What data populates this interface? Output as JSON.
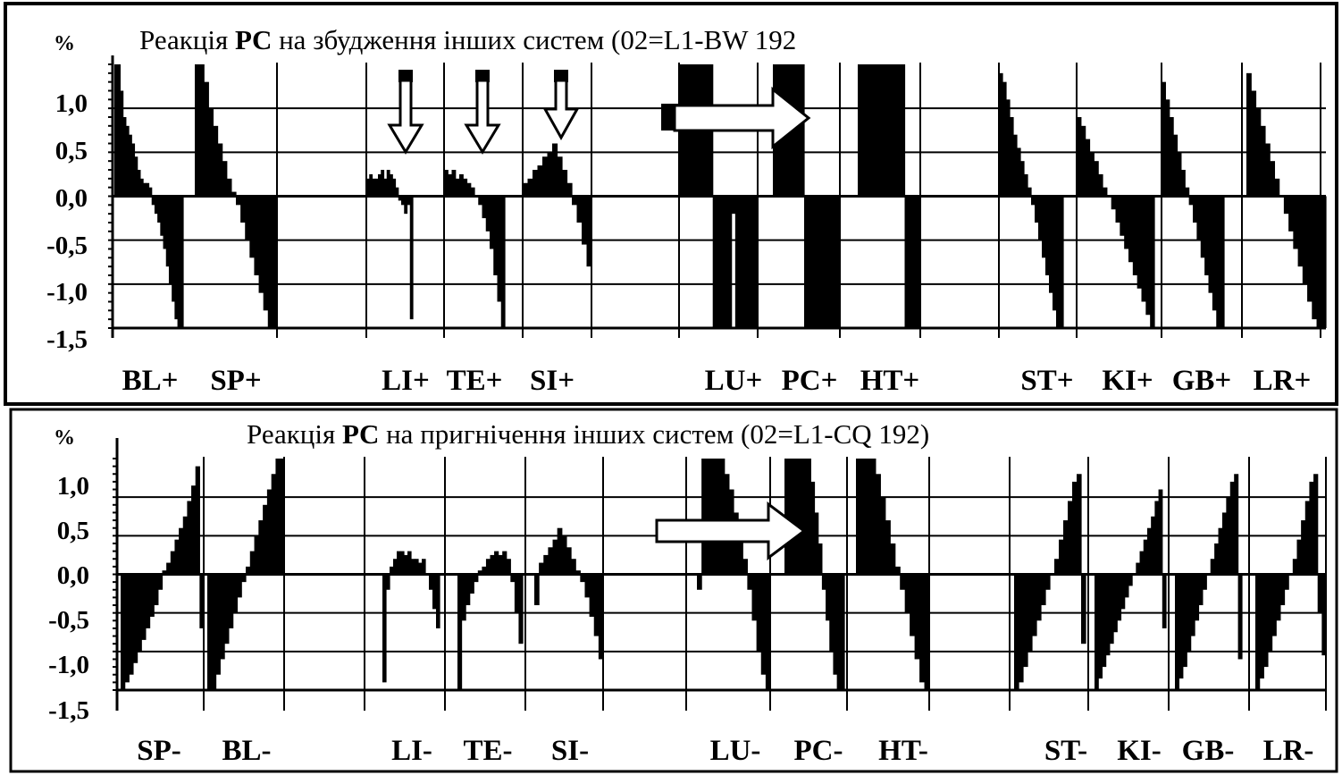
{
  "chart_data": [
    {
      "type": "bar",
      "title": {
        "prefix": "Реакція ",
        "bold": "PC",
        "suffix": " на збудження інших систем  (02=L1-BW 192"
      },
      "ylabel": "%",
      "ylim": [
        -1.5,
        1.5
      ],
      "yticks": [
        "1,0",
        "0,5",
        "0,0",
        "-0,5",
        "-1,0",
        "-1,5"
      ],
      "ytick_values": [
        1.0,
        0.5,
        0.0,
        -0.5,
        -1.0,
        -1.5
      ],
      "categories": [
        "BL+",
        "SP+",
        "LI+",
        "TE+",
        "SI+",
        "LU+",
        "PC+",
        "HT+",
        "ST+",
        "KI+",
        "GB+",
        "LR+"
      ],
      "series": [
        {
          "values": {
            "BL+": [
              1.5,
              1.5,
              1.2,
              0.9,
              0.8,
              0.7,
              0.6,
              0.45,
              0.3,
              0.2,
              0.15,
              0.15,
              0.1,
              -0.1,
              -0.2,
              -0.3,
              -0.45,
              -0.6,
              -0.8,
              -1.0,
              -1.2,
              -1.4,
              -1.5,
              -1.5
            ],
            "SP+": [
              1.5,
              1.5,
              1.3,
              1.0,
              0.8,
              0.6,
              0.4,
              0.2,
              0.05,
              -0.1,
              -0.3,
              -0.5,
              -0.7,
              -0.9,
              -1.1,
              -1.3,
              -1.5,
              -1.5
            ],
            "LI+": [
              0.2,
              0.25,
              0.2,
              0.2,
              0.25,
              0.3,
              0.2,
              0.3,
              0.25,
              0.2,
              0.1,
              -0.05,
              -0.1,
              -0.2,
              -0.1,
              -1.4
            ],
            "TE+": [
              0.3,
              0.25,
              0.3,
              0.2,
              0.25,
              0.2,
              0.15,
              0.1,
              0.0,
              -0.1,
              -0.25,
              -0.4,
              -0.6,
              -0.9,
              -1.2,
              -1.5
            ],
            "SI+": [
              0.15,
              0.2,
              0.3,
              0.35,
              0.45,
              0.5,
              0.6,
              0.45,
              0.3,
              0.15,
              -0.1,
              -0.3,
              -0.55,
              -0.8
            ],
            "LU+": [
              1.5,
              1.5,
              1.5,
              1.5,
              1.5,
              1.5,
              1.5,
              1.5,
              1.5,
              -1.5,
              -1.5,
              -1.5,
              -1.5,
              -1.5,
              -0.2,
              -1.5,
              -1.5,
              -1.5,
              -1.5,
              -1.5,
              -1.5
            ],
            "PC+": [
              1.5,
              1.5,
              1.5,
              1.5,
              1.5,
              1.5,
              1.5,
              -1.5,
              -1.5,
              -1.5,
              -1.5,
              -1.5,
              -1.5,
              -1.5,
              -1.5
            ],
            "HT+": [
              1.5,
              1.5,
              1.5,
              1.5,
              1.5,
              1.5,
              1.5,
              1.5,
              1.5,
              -1.5,
              -1.5,
              -1.5
            ],
            "ST+": [
              1.4,
              1.3,
              1.1,
              0.9,
              0.7,
              0.55,
              0.4,
              0.25,
              0.1,
              -0.1,
              -0.3,
              -0.5,
              -0.7,
              -0.9,
              -1.1,
              -1.3,
              -1.5,
              -1.5
            ],
            "KI+": [
              0.9,
              0.8,
              0.65,
              0.5,
              0.4,
              0.25,
              0.1,
              0.0,
              -0.15,
              -0.3,
              -0.45,
              -0.6,
              -0.75,
              -0.9,
              -1.05,
              -1.2,
              -1.35,
              -1.5
            ],
            "GB+": [
              1.3,
              1.1,
              0.9,
              0.7,
              0.5,
              0.3,
              0.1,
              -0.1,
              -0.3,
              -0.5,
              -0.7,
              -0.9,
              -1.1,
              -1.3,
              -1.5,
              -1.5
            ],
            "LR+": [
              1.4,
              1.2,
              1.0,
              0.8,
              0.6,
              0.4,
              0.2,
              0.0,
              -0.2,
              -0.4,
              -0.6,
              -0.8,
              -1.0,
              -1.2,
              -1.4,
              -1.5,
              -1.5
            ]
          }
        }
      ],
      "arrows": [
        "down",
        "down",
        "down",
        "right"
      ]
    },
    {
      "type": "bar",
      "title": {
        "prefix": "Реакція ",
        "bold": "PC",
        "suffix": " на пригнічення інших систем (02=L1-CQ 192)"
      },
      "ylabel": "%",
      "ylim": [
        -1.5,
        1.5
      ],
      "yticks": [
        "1,0",
        "0,5",
        "0,0",
        "-0,5",
        "-1,0",
        "-1,5"
      ],
      "ytick_values": [
        1.0,
        0.5,
        0.0,
        -0.5,
        -1.0,
        -1.5
      ],
      "categories": [
        "SP-",
        "BL-",
        "LI-",
        "TE-",
        "SI-",
        "LU-",
        "PC-",
        "HT-",
        "ST-",
        "KI-",
        "GB-",
        "LR-"
      ],
      "series": [
        {
          "values": {
            "SP-": [
              -1.5,
              -1.4,
              -1.3,
              -1.15,
              -1.0,
              -0.85,
              -0.7,
              -0.55,
              -0.4,
              -0.2,
              0.05,
              0.15,
              0.3,
              0.45,
              0.6,
              0.75,
              0.95,
              1.15,
              1.4,
              -0.7
            ],
            "BL-": [
              -1.5,
              -1.5,
              -1.3,
              -1.1,
              -0.9,
              -0.7,
              -0.5,
              -0.3,
              -0.1,
              0.1,
              0.3,
              0.5,
              0.7,
              0.9,
              1.1,
              1.3,
              1.5,
              1.5
            ],
            "LI-": [
              -1.4,
              -0.2,
              0.1,
              0.2,
              0.3,
              0.3,
              0.25,
              0.3,
              0.2,
              0.2,
              0.15,
              0.2,
              0.0,
              -0.2,
              -0.45,
              -0.7
            ],
            "TE-": [
              -1.5,
              -0.6,
              -0.4,
              -0.25,
              -0.1,
              0.05,
              0.1,
              0.2,
              0.25,
              0.3,
              0.25,
              0.3,
              0.2,
              -0.1,
              -0.5,
              -0.9
            ],
            "SI-": [
              -0.4,
              0.15,
              0.25,
              0.35,
              0.45,
              0.6,
              0.5,
              0.35,
              0.2,
              0.05,
              -0.1,
              -0.3,
              -0.55,
              -0.8,
              -1.1
            ],
            "LU-": [
              -0.2,
              1.5,
              1.5,
              1.5,
              1.5,
              1.5,
              1.3,
              1.1,
              0.8,
              0.5,
              0.2,
              -0.2,
              -0.6,
              -1.0,
              -1.3,
              -1.5
            ],
            "PC-": [
              1.5,
              1.5,
              1.5,
              1.5,
              1.5,
              1.5,
              1.5,
              1.2,
              0.8,
              0.4,
              -0.2,
              -0.6,
              -1.0,
              -1.3,
              -1.5,
              -1.5
            ],
            "HT-": [
              1.5,
              1.5,
              1.5,
              1.5,
              1.3,
              1.0,
              0.7,
              0.4,
              0.1,
              -0.2,
              -0.5,
              -0.8,
              -1.1,
              -1.4,
              -1.5
            ],
            "ST-": [
              -1.5,
              -1.4,
              -1.2,
              -1.0,
              -0.8,
              -0.6,
              -0.4,
              -0.2,
              0.0,
              0.2,
              0.45,
              0.7,
              0.95,
              1.2,
              1.3,
              -0.9
            ],
            "KI-": [
              -1.5,
              -1.35,
              -1.2,
              -1.05,
              -0.9,
              -0.75,
              -0.6,
              -0.45,
              -0.3,
              -0.15,
              0.0,
              0.15,
              0.3,
              0.45,
              0.6,
              0.75,
              0.95,
              1.1,
              -0.7
            ],
            "GB-": [
              -1.5,
              -1.35,
              -1.2,
              -1.0,
              -0.8,
              -0.6,
              -0.4,
              -0.2,
              0.0,
              0.2,
              0.4,
              0.6,
              0.8,
              1.0,
              1.2,
              1.3,
              -1.1
            ],
            "LR-": [
              -1.5,
              -1.35,
              -1.2,
              -1.0,
              -0.8,
              -0.6,
              -0.4,
              -0.2,
              0.0,
              0.2,
              0.45,
              0.7,
              0.95,
              1.2,
              1.3,
              -0.5,
              -1.05
            ]
          }
        }
      ],
      "arrows": [
        "right"
      ]
    }
  ]
}
